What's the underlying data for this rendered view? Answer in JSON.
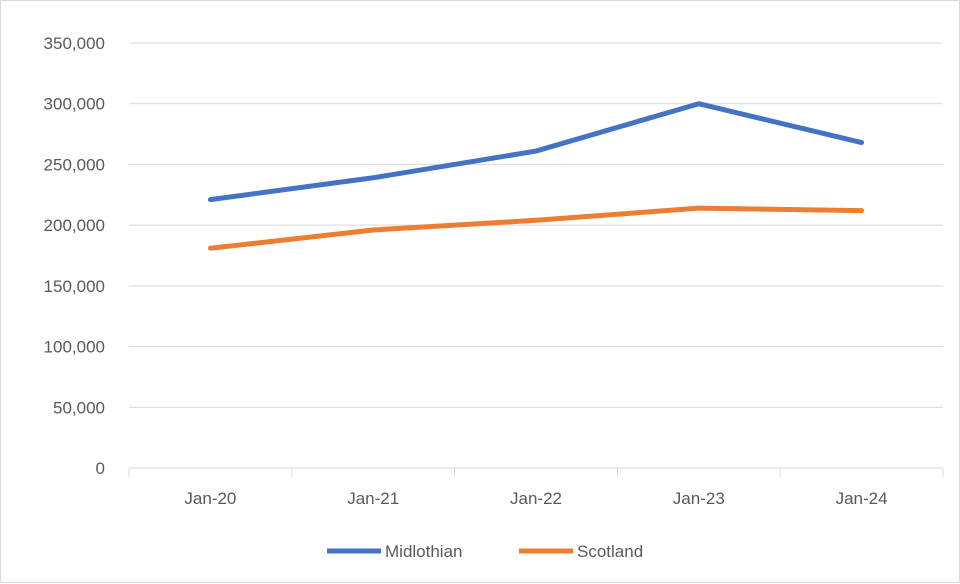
{
  "chart_data": {
    "type": "line",
    "categories": [
      "Jan-20",
      "Jan-21",
      "Jan-22",
      "Jan-23",
      "Jan-24"
    ],
    "series": [
      {
        "name": "Midlothian",
        "values": [
          221000,
          239000,
          261000,
          300000,
          268000
        ],
        "color": "#4472c4"
      },
      {
        "name": "Scotland",
        "values": [
          181000,
          196000,
          204000,
          214000,
          212000
        ],
        "color": "#ed7d31"
      }
    ],
    "ylim": [
      0,
      350000
    ],
    "yticks": [
      "0",
      "50,000",
      "100,000",
      "150,000",
      "200,000",
      "250,000",
      "300,000",
      "350,000"
    ],
    "ytick_values": [
      0,
      50000,
      100000,
      150000,
      200000,
      250000,
      300000,
      350000
    ],
    "grid": true,
    "legend_position": "bottom"
  }
}
